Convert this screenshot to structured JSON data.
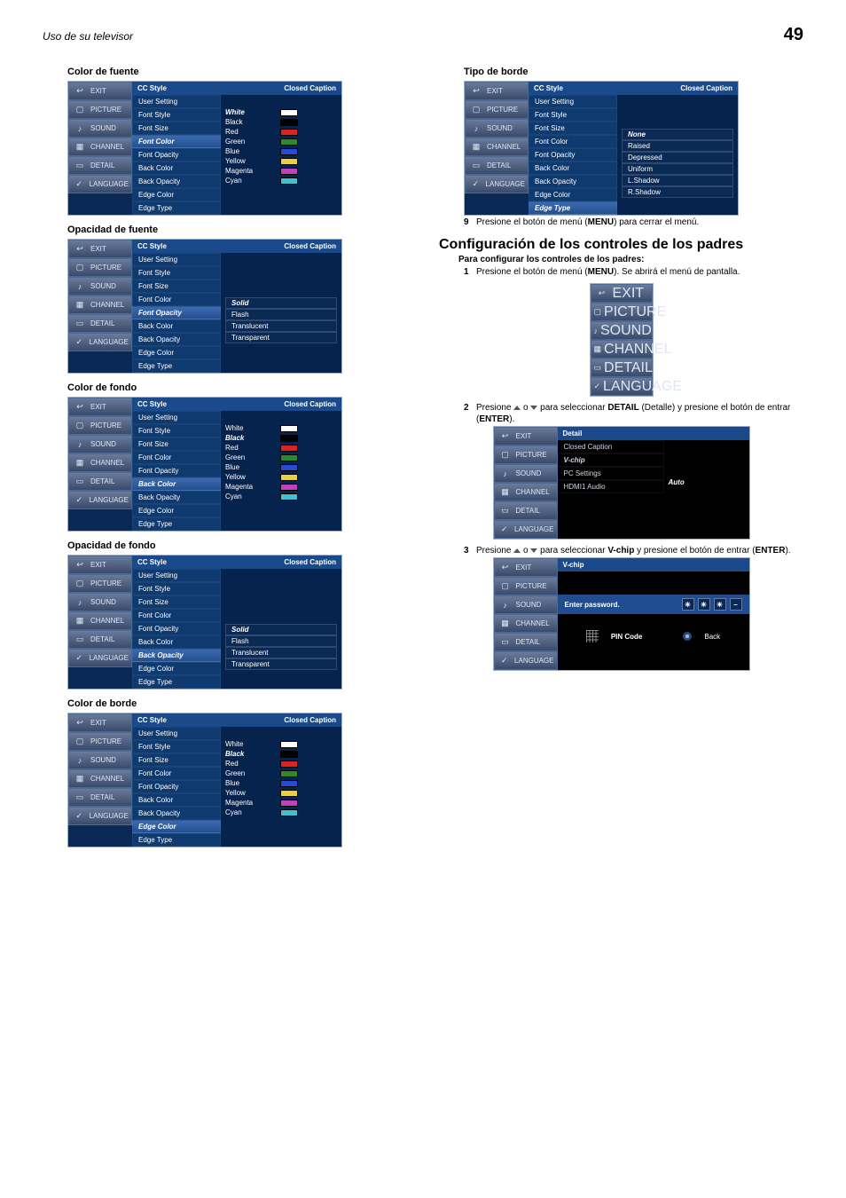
{
  "page": {
    "running": "Uso de su televisor",
    "number": "49"
  },
  "tabs": [
    "EXIT",
    "PICTURE",
    "SOUND",
    "CHANNEL",
    "DETAIL",
    "LANGUAGE"
  ],
  "tab_icons": [
    "↩",
    "▢",
    "♪",
    "▦",
    "▭",
    "✓"
  ],
  "cc_title": "CC Style",
  "cc_badge": "Closed Caption",
  "cc_labels": [
    "User Setting",
    "Font Style",
    "Font Size",
    "Font Color",
    "Font Opacity",
    "Back Color",
    "Back Opacity",
    "Edge Color",
    "Edge Type"
  ],
  "colors": [
    {
      "name": "White",
      "hex": "#ffffff"
    },
    {
      "name": "Black",
      "hex": "#000000"
    },
    {
      "name": "Red",
      "hex": "#d22"
    },
    {
      "name": "Green",
      "hex": "#2a8a2a"
    },
    {
      "name": "Blue",
      "hex": "#2a4ad2"
    },
    {
      "name": "Yellow",
      "hex": "#e8d040"
    },
    {
      "name": "Magenta",
      "hex": "#c040c0"
    },
    {
      "name": "Cyan",
      "hex": "#40c0d0"
    }
  ],
  "opacities": [
    "Solid",
    "Flash",
    "Translucent",
    "Transparent"
  ],
  "edge_types": [
    "None",
    "Raised",
    "Depressed",
    "Uniform",
    "L.Shadow",
    "R.Shadow"
  ],
  "left": [
    {
      "caption": "Color de fuente",
      "hilite_idx": 3,
      "values": "colors",
      "sel": 0,
      "spacer": 1
    },
    {
      "caption": "Opacidad de fuente",
      "hilite_idx": 4,
      "values": "opacities",
      "sel": 0,
      "spacer": 4,
      "boxed": true
    },
    {
      "caption": "Color de fondo",
      "hilite_idx": 5,
      "values": "colors",
      "sel": 1,
      "spacer": 1
    },
    {
      "caption": "Opacidad de fondo",
      "hilite_idx": 6,
      "values": "opacities",
      "sel": 0,
      "spacer": 5,
      "boxed": true
    },
    {
      "caption": "Color de borde",
      "hilite_idx": 7,
      "values": "colors",
      "sel": 1,
      "spacer": 1
    }
  ],
  "right_panel": {
    "caption": "Tipo de borde",
    "hilite_idx": 8,
    "values": "edge_types",
    "sel": 0,
    "spacer": 3,
    "boxed": true
  },
  "step9": "Presione el botón de menú (<b>MENU</b>) para cerrar el menú.",
  "section": "Configuración de los controles de los padres",
  "sub1": "Para configurar los controles de los padres:",
  "step1": "Presione el botón de menú (<b>MENU</b>). Se abrirá el menú de pantalla.",
  "step2a": "Presione ",
  "step2b": " o ",
  "step2c": " para seleccionar <b>DETAIL</b> (Detalle) y presione el botón de entrar (<b>ENTER</b>).",
  "step3a": "Presione ",
  "step3b": " o ",
  "step3c": " para seleccionar <b>V-chip</b> y presione el botón de entrar (<b>ENTER</b>).",
  "detail": {
    "title": "Detail",
    "items": [
      "Closed Caption",
      "V-chip",
      "PC Settings",
      "HDMI1 Audio"
    ],
    "hilite_idx": 1,
    "value": "Auto"
  },
  "vchip": {
    "title": "V-chip",
    "enter": "Enter password.",
    "pin": "PIN Code",
    "back": "Back"
  }
}
